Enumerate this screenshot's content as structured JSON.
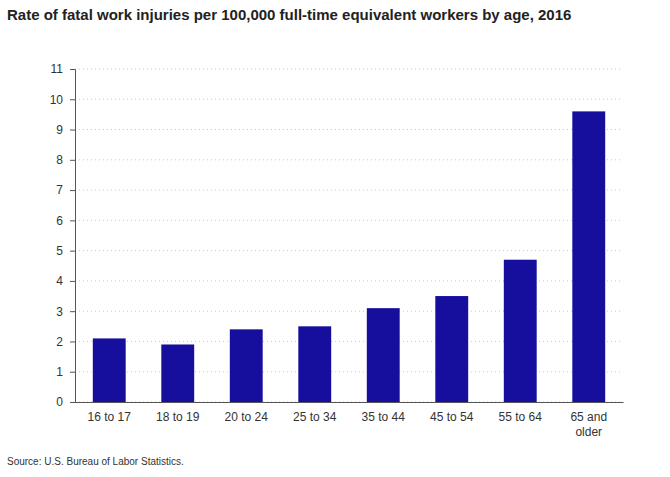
{
  "chart_data": {
    "type": "bar",
    "title": "Rate of fatal work injuries per 100,000 full-time equivalent workers by age, 2016",
    "source": "Source: U.S. Bureau of Labor Statistics.",
    "categories": [
      "16 to 17",
      "18 to 19",
      "20 to 24",
      "25 to 34",
      "35 to 44",
      "45 to 54",
      "55 to 64",
      "65 and older"
    ],
    "values": [
      2.1,
      1.9,
      2.4,
      2.5,
      3.1,
      3.5,
      4.7,
      9.6
    ],
    "color": "#160f9e",
    "ylim": [
      0,
      11
    ],
    "yticks": [
      0,
      1,
      2,
      3,
      4,
      5,
      6,
      7,
      8,
      9,
      10,
      11
    ],
    "grid": true
  }
}
